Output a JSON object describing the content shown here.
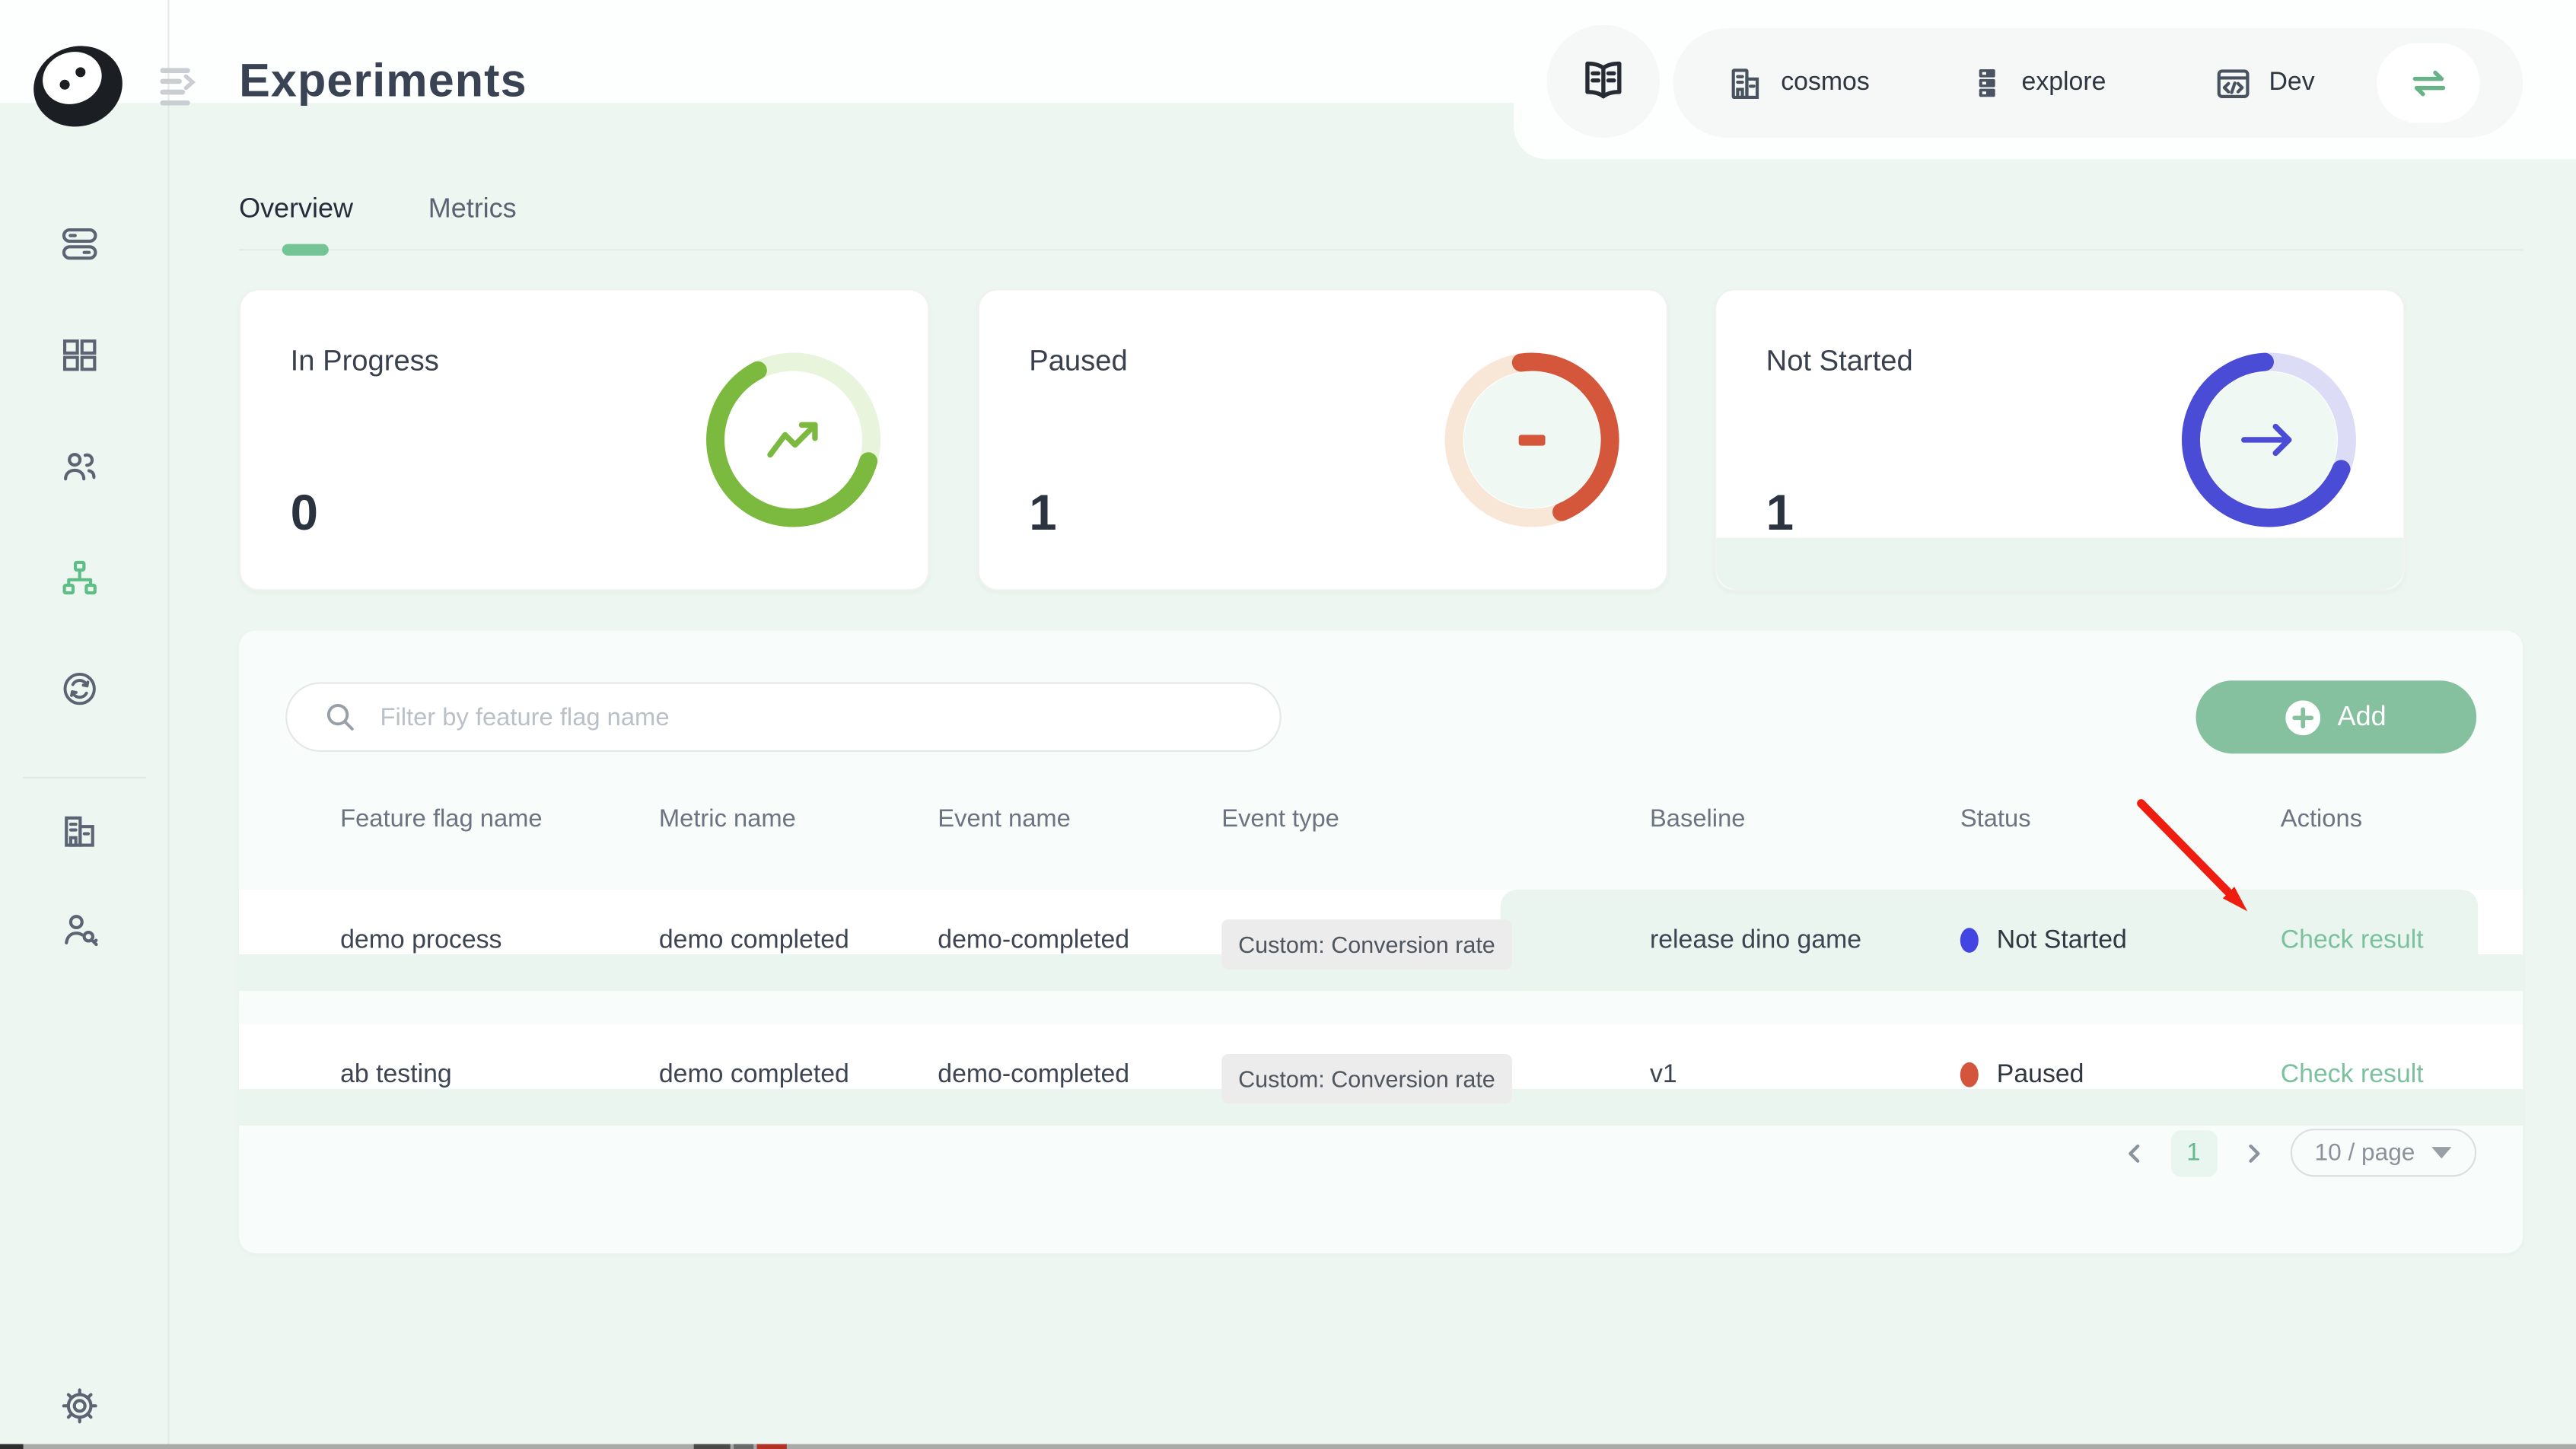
{
  "header": {
    "title": "Experiments",
    "nav": {
      "project": "cosmos",
      "workspace": "explore",
      "environment": "Dev"
    }
  },
  "tabs": {
    "overview": "Overview",
    "metrics": "Metrics"
  },
  "stats": [
    {
      "label": "In Progress",
      "value": "0",
      "icon": "trend-up-icon",
      "ring": {
        "percent": 63,
        "start_deg": 106,
        "color": "#7cb93f",
        "track": "#e9f4dc",
        "inner": "#ffffff"
      }
    },
    {
      "label": "Paused",
      "value": "1",
      "icon": "pause-minus-icon",
      "ring": {
        "percent": 46,
        "start_deg": -8,
        "color": "#d4573c",
        "track": "#f8e7d7",
        "inner": "#f0f8f4"
      }
    },
    {
      "label": "Not Started",
      "value": "1",
      "icon": "arrow-right-icon",
      "ring": {
        "percent": 68,
        "start_deg": 112,
        "color": "#4a4cd6",
        "track": "#dcdcf7",
        "inner": "#f0f8f4"
      }
    }
  ],
  "toolbar": {
    "filter_placeholder": "Filter by feature flag name",
    "add_label": "Add"
  },
  "table": {
    "columns": [
      "Feature flag name",
      "Metric name",
      "Event name",
      "Event type",
      "Baseline",
      "Status",
      "Actions"
    ],
    "rows": [
      {
        "feature_flag_name": "demo process",
        "metric_name": "demo completed",
        "event_name": "demo-completed",
        "event_type": "Custom: Conversion rate",
        "baseline": "release dino game",
        "status": "Not Started",
        "status_color": "#4345e2",
        "action": "Check result",
        "highlighted": true
      },
      {
        "feature_flag_name": "ab testing",
        "metric_name": "demo completed",
        "event_name": "demo-completed",
        "event_type": "Custom: Conversion rate",
        "baseline": "v1",
        "status": "Paused",
        "status_color": "#d2553c",
        "action": "Check result",
        "highlighted": false
      }
    ]
  },
  "pagination": {
    "current_page": "1",
    "page_size": "10 / page"
  },
  "colors": {
    "accent_green": "#85c19e",
    "link_green": "#7bc19e",
    "mint_bg": "#edf6f1",
    "row_highlight": "#eaf5ef"
  },
  "icons": {
    "logo": "featbit-seal-logo",
    "menu": "menu-unfold-icon",
    "sidebar": [
      "toggles-icon",
      "grid-icon",
      "users-icon",
      "sitemap-icon",
      "sync-icon",
      "organization-icon",
      "access-key-icon",
      "gear-icon"
    ],
    "header": [
      "book-open-icon",
      "building-icon",
      "stack-icon",
      "code-window-icon",
      "swap-icon"
    ],
    "misc": [
      "search-icon",
      "plus-circle-icon",
      "chevron-left-icon",
      "chevron-right-icon",
      "caret-down-icon"
    ]
  },
  "annotation": {
    "shape": "red-arrow",
    "points_at": "Check result link of first row"
  }
}
